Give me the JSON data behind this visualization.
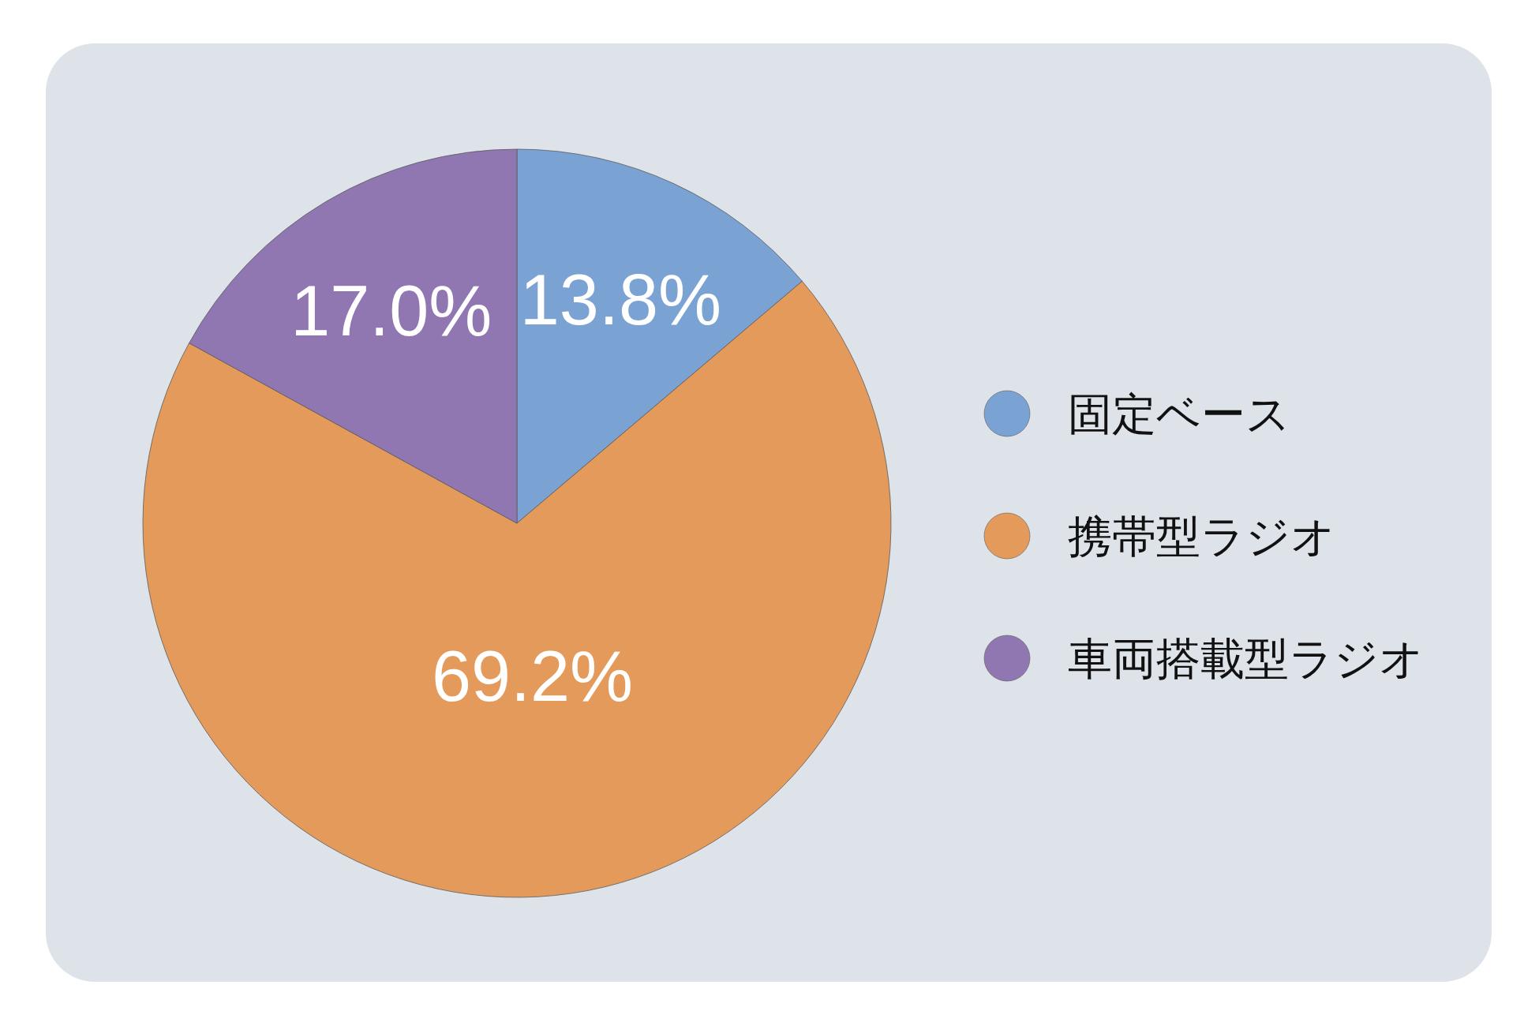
{
  "chart_data": {
    "type": "pie",
    "categories": [
      "固定ベース",
      "携帯型ラジオ",
      "車両搭載型ラジオ"
    ],
    "values": [
      13.8,
      69.2,
      17.0
    ],
    "colors": [
      "#7aa3d3",
      "#e49a5b",
      "#9177b1"
    ],
    "value_labels": [
      "13.8%",
      "69.2%",
      "17.0%"
    ],
    "legend": "right"
  }
}
